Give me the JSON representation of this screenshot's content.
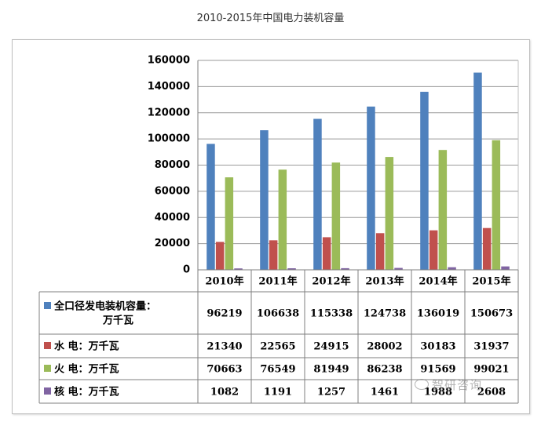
{
  "title": "2010-2015年中国电力装机容量",
  "colors": {
    "series": [
      "#4f81bd",
      "#c0504d",
      "#9bbb59",
      "#8064a2"
    ]
  },
  "watermark": "智研咨询",
  "chart_data": {
    "type": "bar",
    "title": "2010-2015年中国电力装机容量",
    "categories": [
      "2010年",
      "2011年",
      "2012年",
      "2013年",
      "2014年",
      "2015年"
    ],
    "yticks": [
      "0",
      "20000",
      "40000",
      "60000",
      "80000",
      "100000",
      "120000",
      "140000",
      "160000"
    ],
    "ylim": [
      0,
      160000
    ],
    "grid": true,
    "legend": "table-left",
    "series": [
      {
        "name": [
          "全口径发电装机容量：",
          "万千瓦"
        ],
        "values": [
          96219,
          106638,
          115338,
          124738,
          136019,
          150673
        ],
        "labels": [
          "96219",
          "106638",
          "115338",
          "124738",
          "136019",
          "150673"
        ]
      },
      {
        "name": [
          "水 电：万千瓦"
        ],
        "values": [
          21340,
          22565,
          24915,
          28002,
          30183,
          31937
        ],
        "labels": [
          "21340",
          "22565",
          "24915",
          "28002",
          "30183",
          "31937"
        ]
      },
      {
        "name": [
          "火 电：万千瓦"
        ],
        "values": [
          70663,
          76549,
          81949,
          86238,
          91569,
          99021
        ],
        "labels": [
          "70663",
          "76549",
          "81949",
          "86238",
          "91569",
          "99021"
        ]
      },
      {
        "name": [
          "核 电：万千瓦"
        ],
        "values": [
          1082,
          1191,
          1257,
          1461,
          1988,
          2608
        ],
        "labels": [
          "1082",
          "1191",
          "1257",
          "1461",
          "1988",
          "2608"
        ]
      }
    ]
  }
}
